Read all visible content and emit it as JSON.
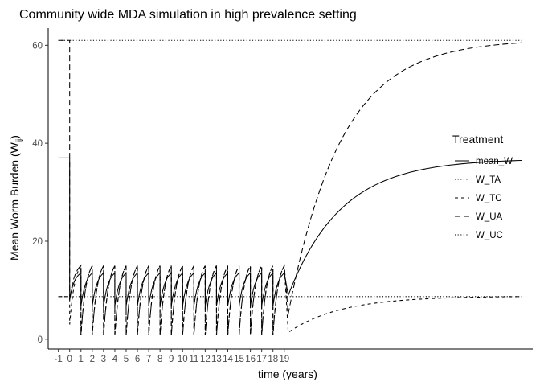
{
  "chart_data": {
    "type": "line",
    "title": "Community wide MDA simulation in high prevalence setting",
    "xlabel": "time (years)",
    "ylabel_main": "Mean Worm Burden (W",
    "ylabel_sub": "ij",
    "ylabel_close": ")",
    "xlim": [
      -1.9,
      41
    ],
    "ylim": [
      -2,
      63.5
    ],
    "x_ticks": [
      -1,
      0,
      1,
      2,
      3,
      4,
      5,
      6,
      7,
      8,
      9,
      10,
      11,
      12,
      13,
      14,
      15,
      16,
      17,
      18,
      19
    ],
    "x_tick_labels": [
      "-1",
      "0",
      "1",
      "2",
      "3",
      "4",
      "5",
      "6",
      "7",
      "8",
      "9",
      "10",
      "11",
      "12",
      "13",
      "14",
      "15",
      "16",
      "17",
      "18",
      "19"
    ],
    "y_ticks": [
      0,
      20,
      40,
      60
    ],
    "y_tick_labels": [
      "0",
      "20",
      "40",
      "60"
    ],
    "grid": false,
    "legend": {
      "title": "Treatment",
      "position": "right",
      "entries": [
        {
          "name": "mean_W",
          "dash": "solid"
        },
        {
          "name": "W_TA",
          "dash": "dotted"
        },
        {
          "name": "W_TC",
          "dash": "dashed"
        },
        {
          "name": "W_UA",
          "dash": "longdash"
        },
        {
          "name": "W_UC",
          "dash": "dotted"
        }
      ]
    },
    "series": [
      {
        "name": "mean_W",
        "dash": "solid",
        "pre_value": 37,
        "baseline": 8.2,
        "peak": 13.5,
        "trough": 6.8,
        "end_value": 36.5
      },
      {
        "name": "W_TA",
        "dash": "dotted",
        "pre_value": 8.7,
        "baseline": 8.7,
        "end_value": 8.7
      },
      {
        "name": "W_TC",
        "dash": "dashed",
        "pre_value": 8.7,
        "baseline": 3,
        "peak": 15,
        "trough": 0.8,
        "end_value": 8.7
      },
      {
        "name": "W_UA",
        "dash": "longdash",
        "pre_value": 61,
        "baseline": 8,
        "peak": 15,
        "trough": 0.8,
        "end_value": 60.5
      },
      {
        "name": "W_UC",
        "dash": "dotted",
        "pre_value": 61,
        "baseline": 61,
        "end_value": 61
      }
    ],
    "treatment_rounds": 19,
    "treatment_interval_years": 1,
    "post_treatment_end_year": 40
  }
}
